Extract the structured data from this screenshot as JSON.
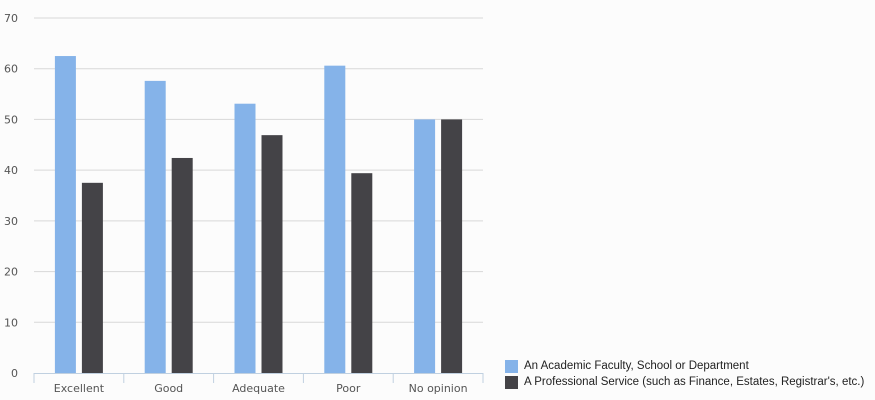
{
  "chart_data": {
    "type": "bar",
    "categories": [
      "Excellent",
      "Good",
      "Adequate",
      "Poor",
      "No opinion"
    ],
    "series": [
      {
        "name": "An Academic Faculty, School or Department",
        "color": "#85b3e9",
        "values": [
          62.5,
          57.6,
          53.1,
          60.6,
          50.0
        ]
      },
      {
        "name": "A Professional Service (such as Finance, Estates, Registrar's, etc.)",
        "color": "#444347",
        "values": [
          37.5,
          42.4,
          46.9,
          39.4,
          50.0
        ]
      }
    ],
    "yticks": [
      "0",
      "10",
      "20",
      "30",
      "40",
      "50",
      "60",
      "70"
    ],
    "ylim": [
      0,
      70
    ],
    "grid": true,
    "legend_position": "bottom-right",
    "title": "",
    "xlabel": "",
    "ylabel": ""
  }
}
